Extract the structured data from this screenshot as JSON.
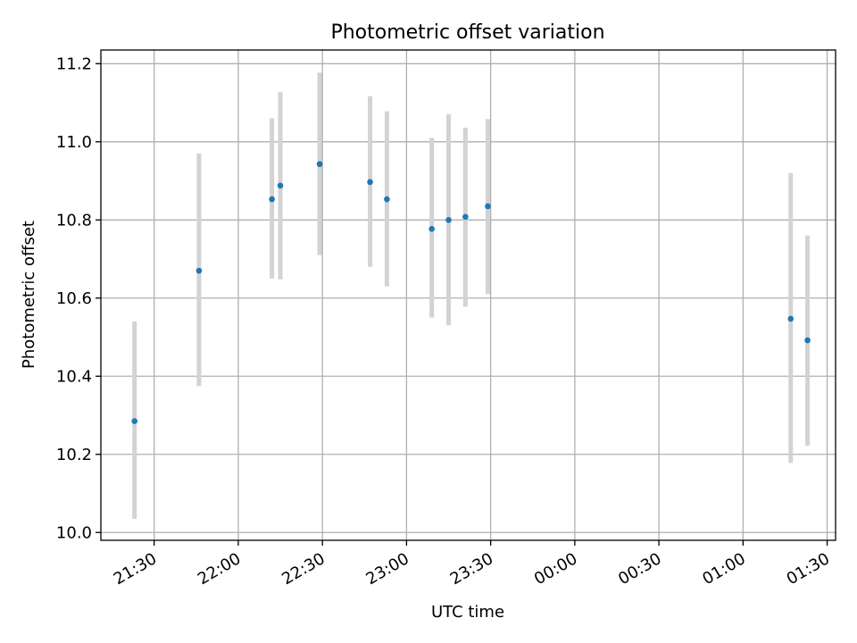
{
  "chart_data": {
    "type": "scatter",
    "title": "Photometric offset variation",
    "xlabel": "UTC time",
    "ylabel": "Photometric offset",
    "x_tick_labels": [
      "21:30",
      "22:00",
      "22:30",
      "23:00",
      "23:30",
      "00:00",
      "00:30",
      "01:00",
      "01:30"
    ],
    "y_tick_labels": [
      "10.0",
      "10.2",
      "10.4",
      "10.6",
      "10.8",
      "11.0",
      "11.2"
    ],
    "x_ticks": [
      "2020-01-01T21:30",
      "2020-01-01T22:00",
      "2020-01-01T22:30",
      "2020-01-01T23:00",
      "2020-01-01T23:30",
      "2020-01-02T00:00",
      "2020-01-02T00:30",
      "2020-01-02T01:00",
      "2020-01-02T01:30"
    ],
    "y_ticks": [
      10.0,
      10.2,
      10.4,
      10.6,
      10.8,
      11.0,
      11.2
    ],
    "xlim": [
      "2020-01-01T21:11",
      "2020-01-02T01:33"
    ],
    "ylim": [
      9.98,
      11.235
    ],
    "grid": true,
    "points": [
      {
        "x": "2020-01-01T21:23",
        "y": 10.285,
        "ylow": 10.035,
        "yhigh": 10.54
      },
      {
        "x": "2020-01-01T21:46",
        "y": 10.67,
        "ylow": 10.375,
        "yhigh": 10.97
      },
      {
        "x": "2020-01-01T22:12",
        "y": 10.853,
        "ylow": 10.65,
        "yhigh": 11.06
      },
      {
        "x": "2020-01-01T22:15",
        "y": 10.888,
        "ylow": 10.648,
        "yhigh": 11.127
      },
      {
        "x": "2020-01-01T22:29",
        "y": 10.943,
        "ylow": 10.71,
        "yhigh": 11.177
      },
      {
        "x": "2020-01-01T22:47",
        "y": 10.897,
        "ylow": 10.68,
        "yhigh": 11.117
      },
      {
        "x": "2020-01-01T22:53",
        "y": 10.853,
        "ylow": 10.63,
        "yhigh": 11.078
      },
      {
        "x": "2020-01-01T23:09",
        "y": 10.777,
        "ylow": 10.55,
        "yhigh": 11.01
      },
      {
        "x": "2020-01-01T23:15",
        "y": 10.8,
        "ylow": 10.53,
        "yhigh": 11.07
      },
      {
        "x": "2020-01-01T23:21",
        "y": 10.808,
        "ylow": 10.578,
        "yhigh": 11.036
      },
      {
        "x": "2020-01-01T23:29",
        "y": 10.835,
        "ylow": 10.61,
        "yhigh": 11.058
      },
      {
        "x": "2020-01-02T01:17",
        "y": 10.547,
        "ylow": 10.178,
        "yhigh": 10.92
      },
      {
        "x": "2020-01-02T01:23",
        "y": 10.492,
        "ylow": 10.222,
        "yhigh": 10.76
      }
    ],
    "marker_color": "#1f77b4",
    "errorbar_color": "#d3d3d3",
    "grid_color": "#b0b0b0"
  }
}
